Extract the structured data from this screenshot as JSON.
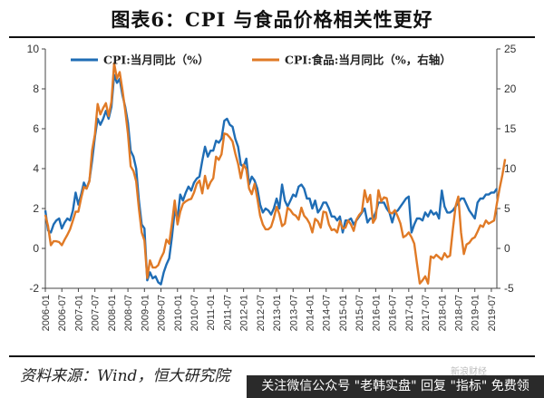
{
  "header": {
    "title": "图表6：CPI 与食品价格相关性更好"
  },
  "footer": {
    "source": "资料来源：Wind，恒大研究院",
    "banner": "关注微信公众号 \"老韩实盘\" 回复 \"指标\" 免费领",
    "corner_watermark": "新浪财经"
  },
  "chart_data": {
    "type": "line",
    "x_labels": [
      "2006-01",
      "2006-07",
      "2007-01",
      "2007-07",
      "2008-01",
      "2008-07",
      "2009-01",
      "2009-07",
      "2010-01",
      "2010-07",
      "2011-01",
      "2011-07",
      "2012-01",
      "2012-07",
      "2013-01",
      "2013-07",
      "2014-01",
      "2014-07",
      "2015-01",
      "2015-07",
      "2016-01",
      "2016-07",
      "2017-01",
      "2017-07",
      "2018-01",
      "2018-07",
      "2019-01",
      "2019-07"
    ],
    "left_axis": {
      "ylim": [
        -2,
        10
      ],
      "ticks": [
        "-2",
        "0",
        "2",
        "4",
        "6",
        "8",
        "10"
      ]
    },
    "right_axis": {
      "ylim": [
        -5,
        25
      ],
      "ticks": [
        "-5",
        "0",
        "5",
        "10",
        "15",
        "20",
        "25"
      ]
    },
    "grid": false,
    "legend_position": "top",
    "series": [
      {
        "name": "CPI:当月同比（%）",
        "axis": "left",
        "color": "#1f6db5",
        "values": [
          1.9,
          0.9,
          0.8,
          1.2,
          1.4,
          1.5,
          1.0,
          1.3,
          1.5,
          1.4,
          1.9,
          2.8,
          2.2,
          2.7,
          3.3,
          3.0,
          3.4,
          4.4,
          5.6,
          6.5,
          6.2,
          6.5,
          6.9,
          6.5,
          7.1,
          8.7,
          8.3,
          8.5,
          7.7,
          7.1,
          6.3,
          4.9,
          4.6,
          4.0,
          2.4,
          1.2,
          1.0,
          -1.6,
          -1.2,
          -1.5,
          -1.4,
          -1.7,
          -1.8,
          -1.2,
          -0.8,
          -0.5,
          0.6,
          1.9,
          1.5,
          2.7,
          2.4,
          2.8,
          3.1,
          2.9,
          3.3,
          3.5,
          3.6,
          4.4,
          5.1,
          4.6,
          4.9,
          4.9,
          5.4,
          5.3,
          5.5,
          6.4,
          6.5,
          6.2,
          6.1,
          5.5,
          5.1,
          4.2,
          4.1,
          4.5,
          3.2,
          3.6,
          3.4,
          3.0,
          2.2,
          1.8,
          2.0,
          1.9,
          1.7,
          2.0,
          2.5,
          2.0,
          3.2,
          2.4,
          2.1,
          2.4,
          2.7,
          2.6,
          3.1,
          3.2,
          3.0,
          2.5,
          2.5,
          2.0,
          2.4,
          1.8,
          2.0,
          2.3,
          2.3,
          2.0,
          1.6,
          1.6,
          1.4,
          1.6,
          0.8,
          1.4,
          1.4,
          1.5,
          1.2,
          1.4,
          1.6,
          1.8,
          2.0,
          1.3,
          1.5,
          1.5,
          1.8,
          2.3,
          2.3,
          2.3,
          2.0,
          1.8,
          1.3,
          1.8,
          1.9,
          2.1,
          2.3,
          2.5,
          2.6,
          0.8,
          1.2,
          1.5,
          1.5,
          1.4,
          1.8,
          1.6,
          1.9,
          1.7,
          1.8,
          1.5,
          2.9,
          2.1,
          1.8,
          1.8,
          1.9,
          2.1,
          2.3,
          2.5,
          2.5,
          2.2,
          1.9,
          1.7,
          1.5,
          2.3,
          2.5,
          2.5,
          2.7,
          2.7,
          2.8,
          2.8,
          3.0
        ]
      },
      {
        "name": "CPI:食品:当月同比（%，右轴）",
        "axis": "right",
        "color": "#e07a26",
        "values": [
          4.2,
          2.8,
          0.4,
          0.9,
          0.9,
          0.8,
          0.4,
          1.1,
          1.7,
          2.4,
          3.5,
          4.6,
          4.6,
          6.3,
          7.7,
          7.5,
          8.4,
          12.3,
          14.3,
          18.1,
          16.8,
          17.6,
          18.2,
          16.6,
          18.4,
          23.2,
          21.3,
          22.1,
          19.9,
          17.3,
          14.4,
          10.3,
          9.7,
          8.4,
          5.0,
          2.0,
          1.0,
          -3.7,
          -1.5,
          -2.4,
          -2.4,
          -2.1,
          -1.2,
          -0.5,
          1.1,
          0.6,
          3.2,
          6.0,
          3.0,
          4.6,
          5.6,
          5.9,
          6.1,
          6.2,
          7.0,
          8.1,
          8.5,
          6.9,
          9.1,
          7.5,
          8.3,
          8.8,
          11.5,
          11.1,
          11.8,
          14.4,
          14.3,
          13.9,
          13.4,
          11.9,
          10.6,
          8.8,
          10.5,
          9.9,
          7.5,
          6.8,
          8.1,
          6.3,
          4.1,
          3.0,
          2.4,
          2.4,
          2.7,
          3.8,
          5.2,
          4.3,
          2.8,
          3.1,
          5.1,
          4.8,
          4.3,
          4.1,
          3.6,
          5.1,
          4.1,
          3.7,
          3.1,
          2.0,
          3.7,
          3.4,
          2.6,
          4.6,
          4.5,
          3.0,
          2.3,
          2.4,
          2.0,
          3.4,
          2.5,
          2.6,
          3.5,
          3.0,
          2.2,
          3.6,
          4.2,
          4.6,
          7.3,
          5.8,
          6.7,
          3.2,
          3.8,
          7.3,
          5.9,
          6.4,
          6.3,
          4.5,
          4.4,
          4.8,
          4.0,
          3.1,
          1.4,
          1.6,
          2.0,
          1.4,
          0.6,
          -1.9,
          -4.4,
          -4.0,
          -3.5,
          -4.4,
          -1.0,
          -1.2,
          -0.8,
          -1.1,
          -1.4,
          -0.6,
          -1.1,
          -0.9,
          2.3,
          5.3,
          6.5,
          2.0,
          -0.7,
          0.5,
          0.7,
          1.2,
          1.4,
          2.1,
          2.9,
          2.7,
          3.5,
          3.1,
          3.3,
          3.5,
          5.6,
          7.5,
          9.2,
          11.2
        ]
      }
    ]
  }
}
